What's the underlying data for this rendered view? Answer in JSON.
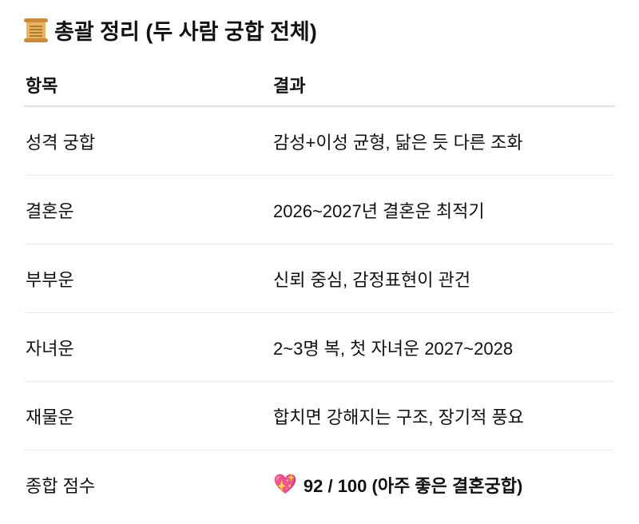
{
  "title": {
    "icon": "scroll-icon",
    "text": "총괄 정리 (두 사람 궁합 전체)"
  },
  "table": {
    "headers": [
      "항목",
      "결과"
    ],
    "rows": [
      {
        "item": "성격 궁합",
        "result": "감성+이성 균형, 닮은 듯 다른 조화"
      },
      {
        "item": "결혼운",
        "result": "2026~2027년 결혼운 최적기"
      },
      {
        "item": "부부운",
        "result": "신뢰 중심, 감정표현이 관건"
      },
      {
        "item": "자녀운",
        "result": "2~3명 복, 첫 자녀운 2027~2028"
      },
      {
        "item": "재물운",
        "result": "합치면 강해지는 구조, 장기적 풍요"
      },
      {
        "item": "종합 점수",
        "result": "92 / 100 (아주 좋은 결혼궁합)",
        "icon": "sparkling-heart-icon"
      }
    ]
  }
}
